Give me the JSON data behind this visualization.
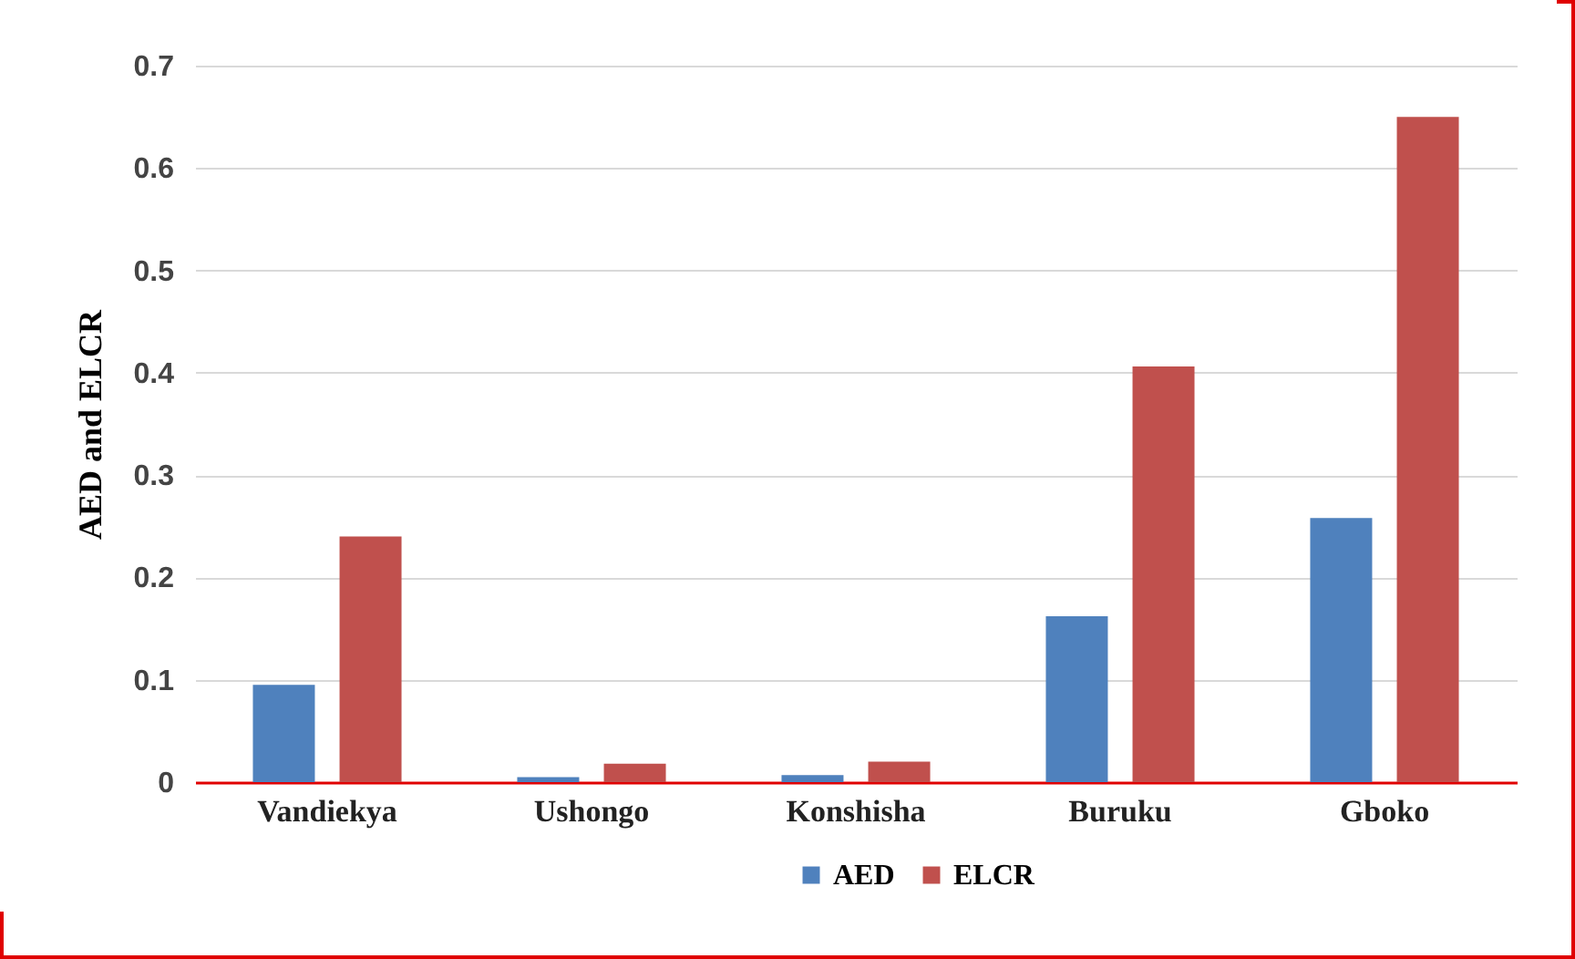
{
  "chart_data": {
    "type": "bar",
    "ylabel": "AED and ELCR",
    "categories": [
      "Vandiekya",
      "Ushongo",
      "Konshisha",
      "Buruku",
      "Gboko"
    ],
    "series": [
      {
        "name": "AED",
        "color": "#4f81bd",
        "values": [
          0.095,
          0.005,
          0.007,
          0.162,
          0.258
        ]
      },
      {
        "name": "ELCR",
        "color": "#c0504d",
        "values": [
          0.24,
          0.018,
          0.02,
          0.406,
          0.65
        ]
      }
    ],
    "ylim": [
      0,
      0.7
    ],
    "yticks": [
      0,
      0.1,
      0.2,
      0.3,
      0.4,
      0.5,
      0.6,
      0.7
    ],
    "grid": "y",
    "legend": "bottom"
  }
}
